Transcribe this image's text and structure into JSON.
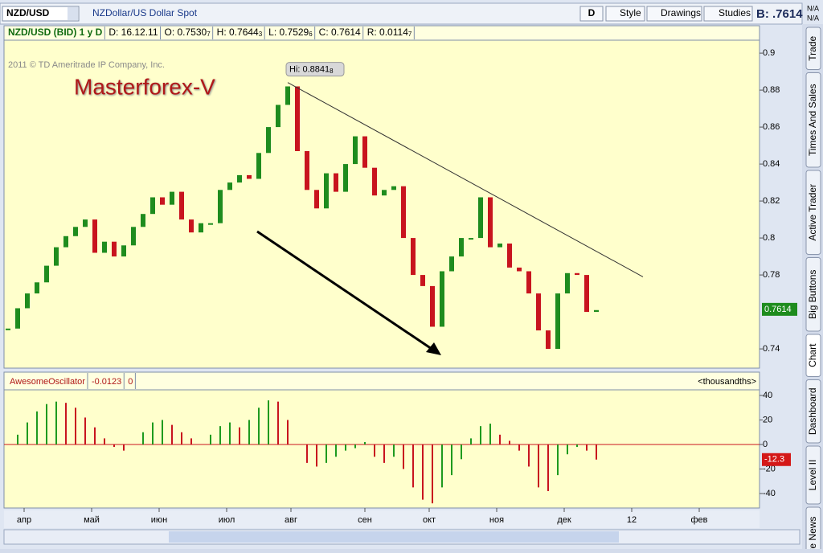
{
  "toolbar": {
    "symbol": "NZD/USD",
    "description": "NZDollar/US Dollar Spot",
    "period_button": "D",
    "buttons": [
      "Style",
      "Drawings",
      "Studies"
    ],
    "bid": "B: .7614",
    "na": [
      "N/A",
      "N/A"
    ]
  },
  "info_bar": [
    {
      "text": "NZD/USD (BID) 1 y D"
    },
    {
      "text": "D: 16.12.11"
    },
    {
      "text": "O: 0.7530",
      "sub": "7"
    },
    {
      "text": "H: 0.7644",
      "sub": "3"
    },
    {
      "text": "L: 0.7529",
      "sub": "6"
    },
    {
      "text": "C: 0.7614"
    },
    {
      "text": "R: 0.0114",
      "sub": "7"
    }
  ],
  "copyright": "2011 © TD Ameritrade IP Company, Inc.",
  "watermark": "Masterforex-V",
  "side_tabs": [
    "Trade",
    "Times And Sales",
    "Active Trader",
    "Big Buttons",
    "Chart",
    "Dashboard",
    "Level II",
    "Live News"
  ],
  "chart_data": [
    {
      "type": "candlestick",
      "up_color": "#1e8c1e",
      "down_color": "#c8141e",
      "x": [
        0,
        3,
        6,
        9,
        12,
        15,
        18,
        21,
        24,
        27,
        30,
        33,
        36,
        39,
        42,
        45,
        48,
        51,
        54,
        57,
        60,
        63,
        66,
        69,
        72,
        75,
        78,
        81,
        84,
        87,
        90,
        93,
        96,
        99,
        102,
        105,
        108,
        111,
        114,
        117,
        120,
        123,
        126,
        129,
        132,
        135,
        138,
        141,
        144,
        147,
        150,
        153,
        156,
        159,
        162,
        165,
        168,
        171,
        174,
        177,
        180,
        183
      ],
      "close": [
        0.751,
        0.762,
        0.77,
        0.776,
        0.785,
        0.795,
        0.801,
        0.806,
        0.81,
        0.792,
        0.798,
        0.79,
        0.796,
        0.806,
        0.813,
        0.822,
        0.818,
        0.825,
        0.81,
        0.803,
        0.808,
        0.808,
        0.826,
        0.83,
        0.834,
        0.832,
        0.846,
        0.86,
        0.872,
        0.882,
        0.847,
        0.826,
        0.816,
        0.835,
        0.825,
        0.84,
        0.855,
        0.838,
        0.823,
        0.826,
        0.828,
        0.8,
        0.78,
        0.774,
        0.752,
        0.782,
        0.79,
        0.8,
        0.8,
        0.822,
        0.795,
        0.797,
        0.784,
        0.782,
        0.77,
        0.75,
        0.74,
        0.77,
        0.781,
        0.78,
        0.76,
        0.761
      ],
      "ylim": [
        0.7296,
        0.907
      ],
      "yticks": [
        0.74,
        0.78,
        0.8,
        0.82,
        0.84,
        0.86,
        0.88,
        0.9
      ],
      "xlim": [
        -1.25,
        233.75
      ],
      "xticks": [
        {
          "value": 5,
          "label": "апр"
        },
        {
          "value": 26,
          "label": "май"
        },
        {
          "value": 47,
          "label": "июн"
        },
        {
          "value": 68,
          "label": "июл"
        },
        {
          "value": 88,
          "label": "авг"
        },
        {
          "value": 111,
          "label": "сен"
        },
        {
          "value": 131,
          "label": "окт"
        },
        {
          "value": 152,
          "label": "ноя"
        },
        {
          "value": 173,
          "label": "дек"
        },
        {
          "value": 194,
          "label": "12"
        },
        {
          "value": 215,
          "label": "фев"
        }
      ],
      "high_label": {
        "value": 0.8841,
        "label": "Hi: 0.8841",
        "sub": "8"
      },
      "trendline": {
        "x": [
          87,
          197.5
        ],
        "y": [
          0.8841,
          0.779
        ]
      },
      "last_value": 0.7614
    },
    {
      "type": "histogram",
      "name": "AwesomeOscillator",
      "reading": "-0.0123",
      "offset": "0",
      "units": "<thousandths>",
      "up_color": "#1e9a1e",
      "down_color": "#c8141e",
      "x": [
        0,
        3,
        6,
        9,
        12,
        15,
        18,
        21,
        24,
        27,
        30,
        33,
        36,
        39,
        42,
        45,
        48,
        51,
        54,
        57,
        60,
        63,
        66,
        69,
        72,
        75,
        78,
        81,
        84,
        87,
        90,
        93,
        96,
        99,
        102,
        105,
        108,
        111,
        114,
        117,
        120,
        123,
        126,
        129,
        132,
        135,
        138,
        141,
        144,
        147,
        150,
        153,
        156,
        159,
        162,
        165,
        168,
        171,
        174,
        177,
        180,
        183
      ],
      "values": [
        0,
        8,
        18,
        27,
        33,
        35,
        34,
        30,
        22,
        14,
        5,
        -2,
        -5,
        0,
        10,
        18,
        20,
        16,
        10,
        5,
        0,
        8,
        15,
        18,
        14,
        20,
        30,
        36,
        35,
        20,
        0,
        -15,
        -18,
        -15,
        -10,
        -5,
        -3,
        2,
        -10,
        -15,
        -10,
        -20,
        -35,
        -45,
        -48,
        -35,
        -25,
        -12,
        5,
        15,
        17,
        8,
        3,
        -5,
        -18,
        -35,
        -38,
        -25,
        -8,
        -2,
        -5,
        -12.3
      ],
      "ylim": [
        -51.8,
        44.6
      ],
      "yticks": [
        -40,
        -20,
        0,
        20,
        40
      ],
      "last_value": -12.3
    }
  ]
}
